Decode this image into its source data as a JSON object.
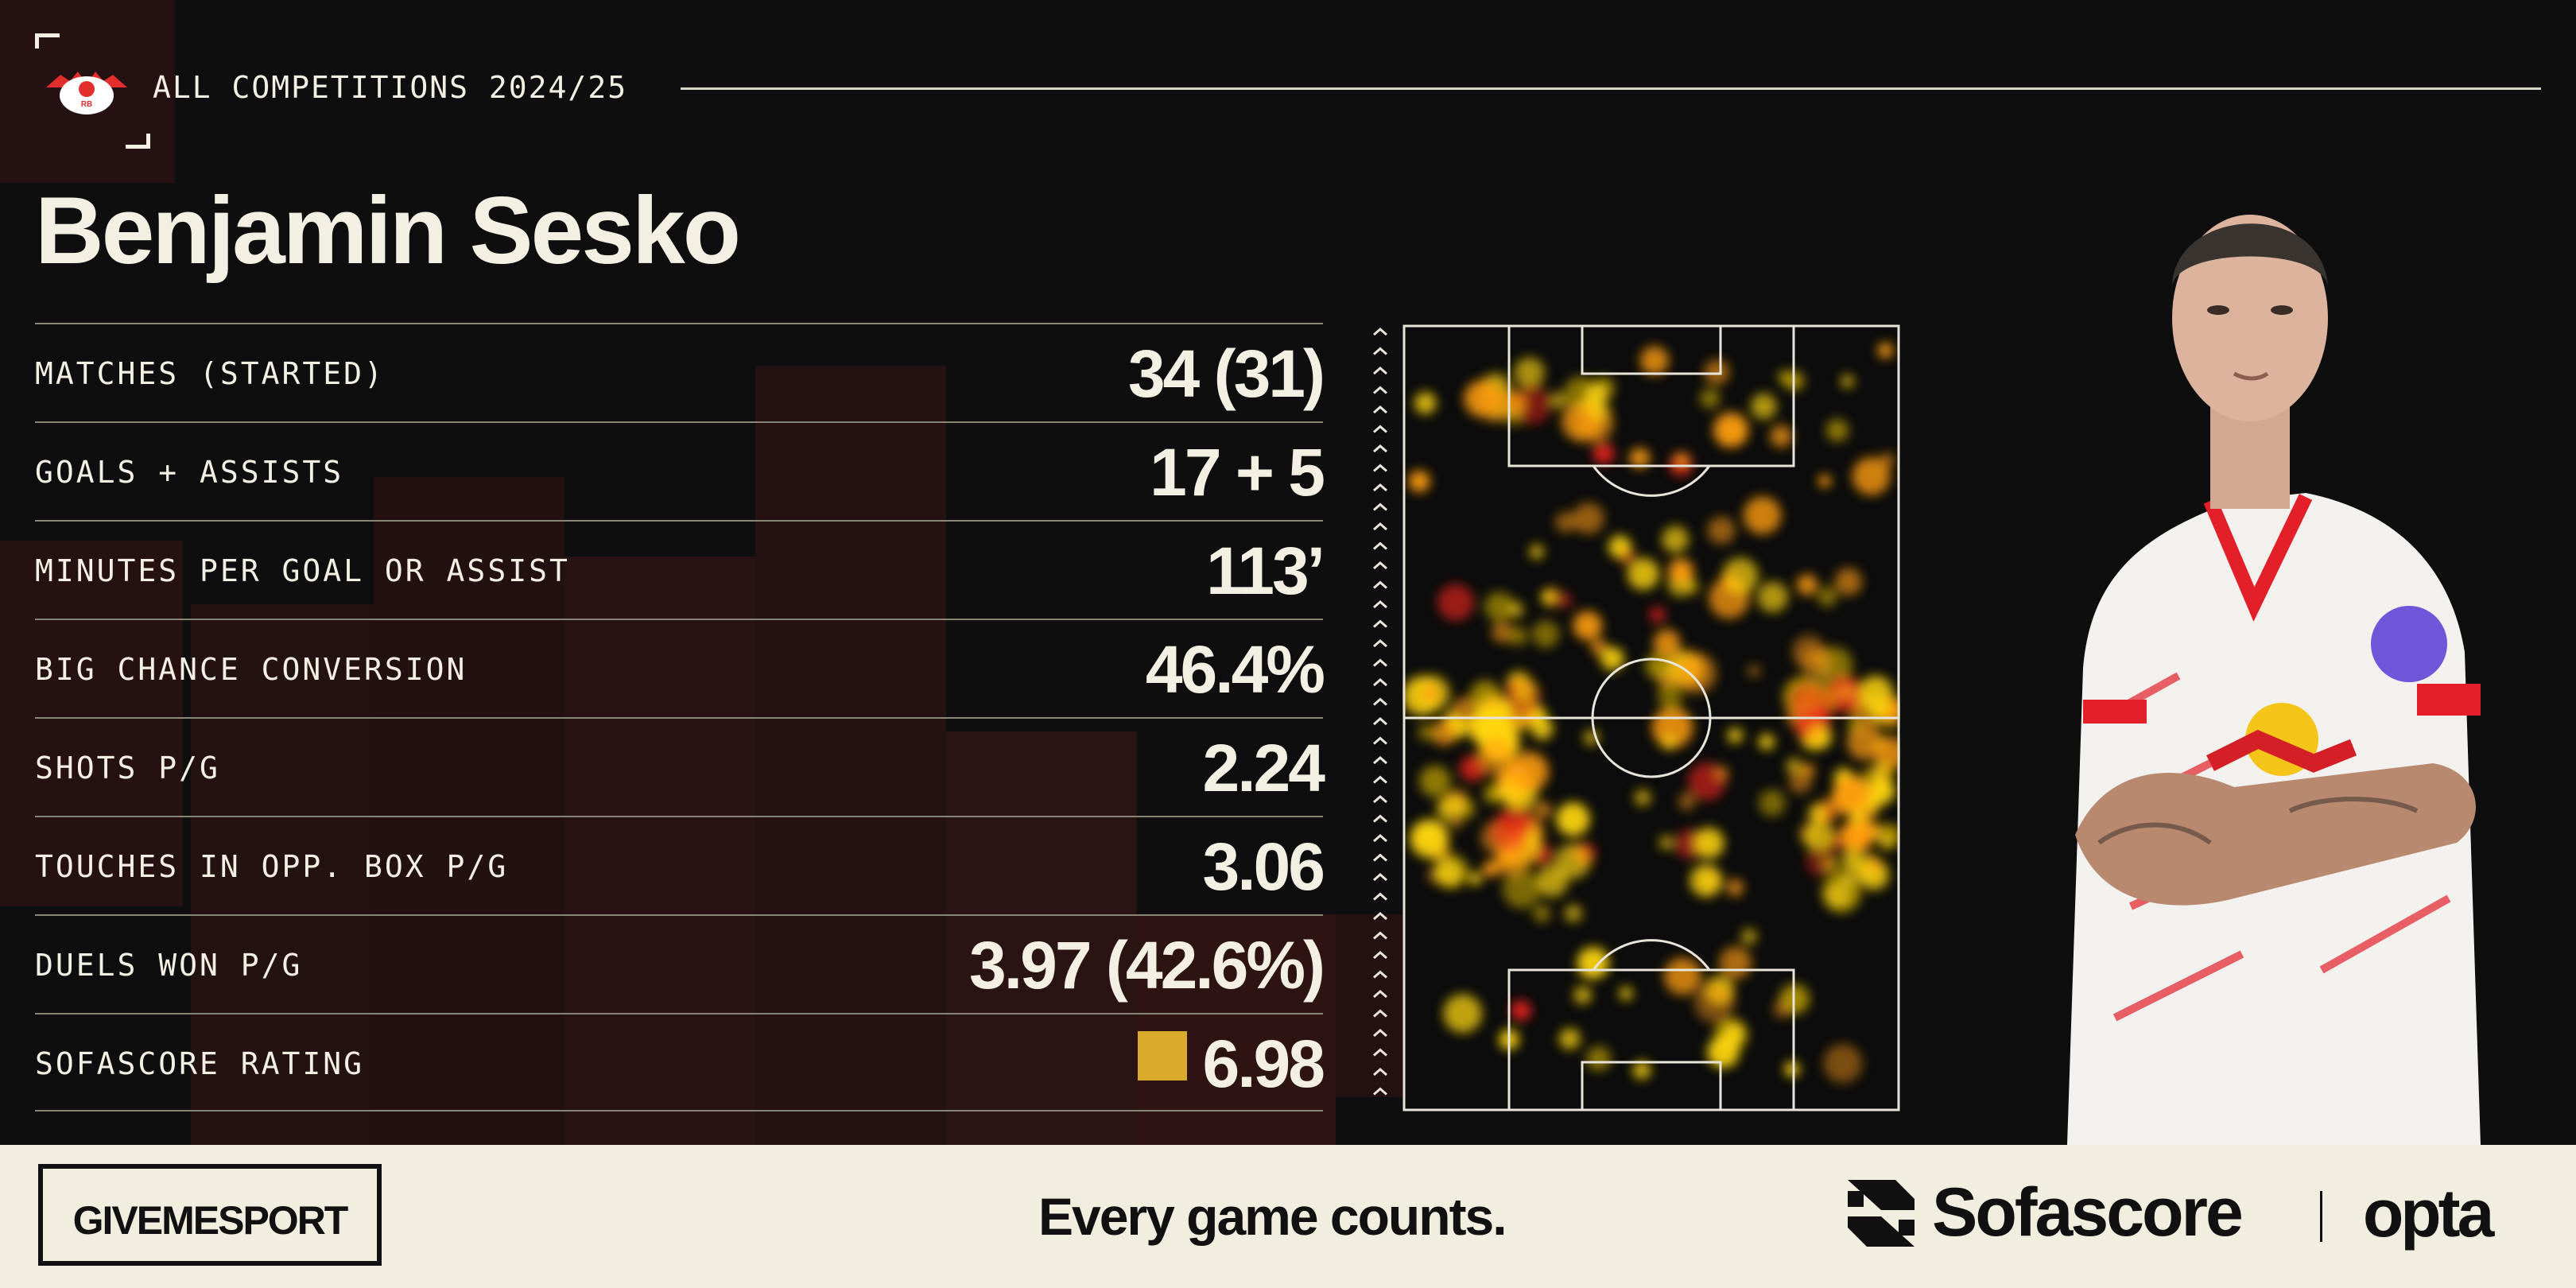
{
  "header": {
    "crest_icon": "rb-leipzig-crest-icon",
    "season": "ALL COMPETITIONS 2024/25",
    "player_name": "Benjamin Sesko"
  },
  "stats": [
    {
      "label": "MATCHES (STARTED)",
      "value": "34 (31)"
    },
    {
      "label": "GOALS + ASSISTS",
      "value": "17 + 5"
    },
    {
      "label": "MINUTES PER GOAL OR ASSIST",
      "value": "113’"
    },
    {
      "label": "BIG CHANCE CONVERSION",
      "value": "46.4%"
    },
    {
      "label": "SHOTS P/G",
      "value": "2.24"
    },
    {
      "label": "TOUCHES IN OPP. BOX P/G",
      "value": "3.06"
    },
    {
      "label": "DUELS WON P/G",
      "value": "3.97 (42.6%)"
    },
    {
      "label": "SOFASCORE RATING",
      "value": "6.98"
    }
  ],
  "colors": {
    "background": "#0e0e0e",
    "text": "#f3efe3",
    "rating_badge": "#d9aa2c",
    "footer_bg": "#f1eddf",
    "heat_hot": "#e8231b",
    "heat_warm": "#ffd60a"
  },
  "heatmap": {
    "direction_icon": "attack-direction-arrows-icon"
  },
  "footer": {
    "publisher": "GIVEMESPORT",
    "tagline": "Every game counts.",
    "sofascore": "Sofascore",
    "opta": "opta",
    "sofascore_icon": "sofascore-logo-icon"
  }
}
